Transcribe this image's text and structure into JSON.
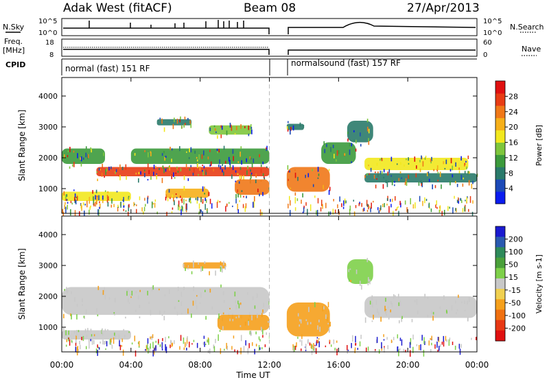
{
  "header": {
    "station": "Adak West (fitACF)",
    "beam": "Beam 08",
    "date": "27/Apr/2013"
  },
  "strips": {
    "nsky_label": "N.Sky",
    "nsky_ticks": [
      "10^5",
      "10^0"
    ],
    "nsearch_label": "N.Search",
    "nsearch_ticks": [
      "10^5",
      "10^0"
    ],
    "freq_label_line1": "Freq.",
    "freq_label_line2": "[MHz]",
    "freq_ticks": [
      "18",
      "8"
    ],
    "nave_label": "Nave",
    "nave_ticks": [
      "60",
      "0"
    ],
    "cpid_label": "CPID",
    "cpid_left": "normal (fast) 151 RF",
    "cpid_right": "normalsound (fast) 157 RF"
  },
  "chart_data": [
    {
      "type": "heatmap",
      "quantity": "power",
      "ylabel": "Slant Range [km]",
      "xlim": [
        0,
        24
      ],
      "ylim": [
        200,
        4600
      ],
      "yticks": [
        "1000",
        "2000",
        "3000",
        "4000"
      ],
      "colorbar": {
        "label": "Power [dB]",
        "ticks": [
          "4",
          "8",
          "12",
          "16",
          "20",
          "24",
          "28"
        ],
        "colors": [
          "#0a1cf0",
          "#1c4ab8",
          "#2a7a6a",
          "#3c9a3c",
          "#7ec63c",
          "#f2e81e",
          "#f6b01a",
          "#f07818",
          "#e83c14",
          "#e01010"
        ]
      },
      "data_gap_hours": [
        12.0,
        13.0
      ],
      "echo_bands": [
        {
          "t0": 0.0,
          "t1": 2.5,
          "r0": 1800,
          "r1": 2300,
          "level": 10
        },
        {
          "t0": 0.0,
          "t1": 4.0,
          "r0": 600,
          "r1": 900,
          "level": 18
        },
        {
          "t0": 2.0,
          "t1": 12.0,
          "r0": 1400,
          "r1": 1700,
          "level": 26
        },
        {
          "t0": 4.0,
          "t1": 12.0,
          "r0": 1800,
          "r1": 2300,
          "level": 9
        },
        {
          "t0": 6.0,
          "t1": 8.5,
          "r0": 700,
          "r1": 1000,
          "level": 20
        },
        {
          "t0": 8.5,
          "t1": 11.0,
          "r0": 2750,
          "r1": 3050,
          "level": 14
        },
        {
          "t0": 5.5,
          "t1": 7.5,
          "r0": 3050,
          "r1": 3250,
          "level": 7
        },
        {
          "t0": 10.0,
          "t1": 12.0,
          "r0": 800,
          "r1": 1300,
          "level": 22
        },
        {
          "t0": 13.0,
          "t1": 15.5,
          "r0": 900,
          "r1": 1700,
          "level": 23
        },
        {
          "t0": 15.0,
          "t1": 17.0,
          "r0": 1800,
          "r1": 2500,
          "level": 9
        },
        {
          "t0": 17.5,
          "t1": 23.5,
          "r0": 1600,
          "r1": 2000,
          "level": 18
        },
        {
          "t0": 17.5,
          "t1": 24.0,
          "r0": 1200,
          "r1": 1500,
          "level": 8
        },
        {
          "t0": 16.5,
          "t1": 18.0,
          "r0": 2500,
          "r1": 3200,
          "level": 8
        },
        {
          "t0": 13.0,
          "t1": 14.0,
          "r0": 2900,
          "r1": 3100,
          "level": 6
        }
      ]
    },
    {
      "type": "heatmap",
      "quantity": "velocity",
      "ylabel": "Slant Range [km]",
      "xlabel": "Time UT",
      "xlim": [
        0,
        24
      ],
      "ylim": [
        200,
        4600
      ],
      "xticks": [
        "00:00",
        "04:00",
        "08:00",
        "12:00",
        "16:00",
        "20:00",
        "00:00"
      ],
      "yticks": [
        "1000",
        "2000",
        "3000",
        "4000"
      ],
      "colorbar": {
        "label": "Velocity [m s-1]",
        "ticks": [
          "200",
          "100",
          "50",
          "15",
          "-15",
          "-50",
          "-100",
          "-200"
        ],
        "colors": [
          "#1a1ad0",
          "#2a5ab0",
          "#2e8a5a",
          "#4aa03a",
          "#7ed04a",
          "#c8c8c8",
          "#f0d050",
          "#f5a01c",
          "#f07010",
          "#e83814",
          "#e01010"
        ]
      },
      "data_gap_hours": [
        12.0,
        13.0
      ],
      "echo_bands": [
        {
          "t0": 0.0,
          "t1": 12.0,
          "r0": 1400,
          "r1": 2300,
          "level": "ground-scatter"
        },
        {
          "t0": 0.0,
          "t1": 4.0,
          "r0": 600,
          "r1": 900,
          "level": "ground-scatter"
        },
        {
          "t0": 9.0,
          "t1": 12.0,
          "r0": 900,
          "r1": 1400,
          "level": "-50"
        },
        {
          "t0": 13.0,
          "t1": 15.5,
          "r0": 700,
          "r1": 1800,
          "level": "-50"
        },
        {
          "t0": 17.5,
          "t1": 24.0,
          "r0": 1300,
          "r1": 2000,
          "level": "ground-scatter"
        },
        {
          "t0": 16.5,
          "t1": 18.0,
          "r0": 2400,
          "r1": 3200,
          "level": "50"
        },
        {
          "t0": 7.0,
          "t1": 9.5,
          "r0": 2900,
          "r1": 3100,
          "level": "-50"
        }
      ]
    }
  ]
}
